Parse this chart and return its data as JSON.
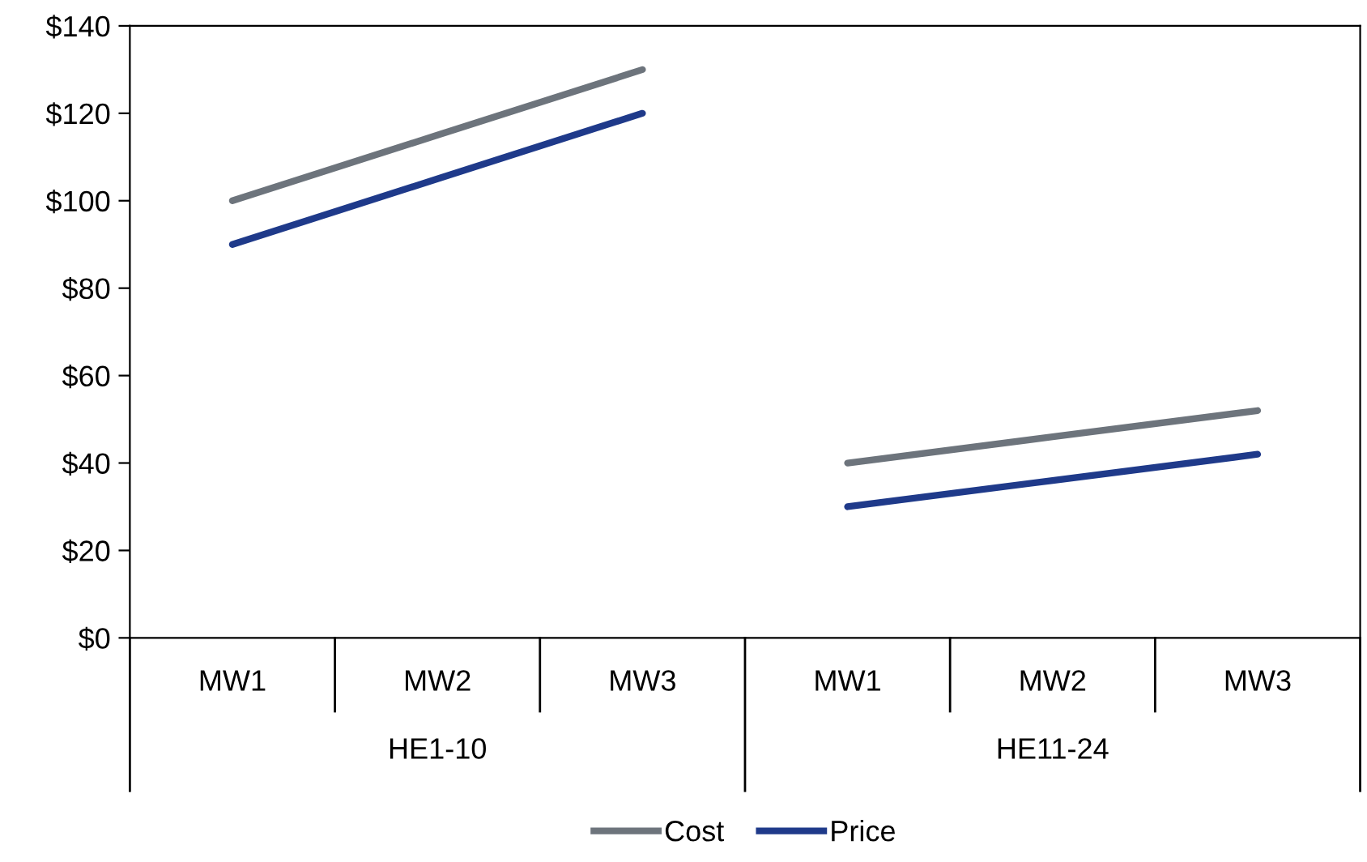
{
  "chart_data": {
    "type": "line",
    "categories": [
      "MW1",
      "MW2",
      "MW3",
      "MW1",
      "MW2",
      "MW3"
    ],
    "annotations": [
      "HE1-10",
      "HE11-24"
    ],
    "series": [
      {
        "name": "Cost",
        "color": "#6d747c",
        "values": [
          100,
          115,
          130,
          40,
          46,
          52
        ]
      },
      {
        "name": "Price",
        "color": "#1f3a8a",
        "values": [
          90,
          105,
          120,
          30,
          36,
          42
        ]
      }
    ],
    "ylim": [
      0,
      140
    ],
    "yticks": [
      {
        "value": 0,
        "label": "$0"
      },
      {
        "value": 20,
        "label": "$20"
      },
      {
        "value": 40,
        "label": "$40"
      },
      {
        "value": 60,
        "label": "$60"
      },
      {
        "value": 80,
        "label": "$80"
      },
      {
        "value": 100,
        "label": "$100"
      },
      {
        "value": 120,
        "label": "$120"
      },
      {
        "value": 140,
        "label": "$140"
      }
    ],
    "grid": false,
    "legend": "bottom",
    "marker": "none",
    "line_style": "solid"
  }
}
